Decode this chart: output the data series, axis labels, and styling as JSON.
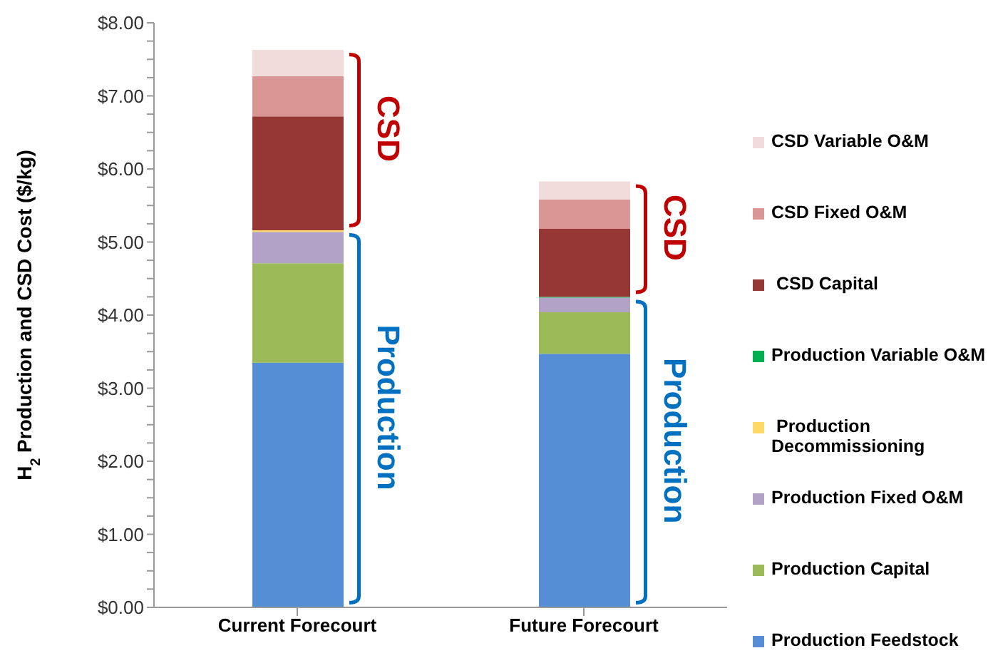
{
  "chart_data": {
    "type": "bar",
    "stacked": true,
    "ylabel": "H$_{2}$ Production and CSD Cost ($/kg)",
    "categories": [
      "Current Forecourt",
      "Future Forecourt"
    ],
    "series": [
      {
        "name": "Production Feedstock",
        "color": "#558ed5",
        "values": [
          3.35,
          3.47
        ]
      },
      {
        "name": "Production Capital",
        "color": "#9bbb59",
        "values": [
          1.36,
          0.57
        ]
      },
      {
        "name": "Production Fixed O&M",
        "color": "#b3a2c7",
        "values": [
          0.43,
          0.2
        ]
      },
      {
        "name": " Production Decommissioning",
        "color": "#ffd966",
        "values": [
          0.02,
          0
        ]
      },
      {
        "name": "Production Variable O&M",
        "color": "#00b050",
        "values": [
          0,
          0.01
        ]
      },
      {
        "name": " CSD Capital",
        "color": "#953735",
        "values": [
          1.56,
          0.93
        ]
      },
      {
        "name": "CSD Fixed O&M",
        "color": "#d99694",
        "values": [
          0.55,
          0.4
        ]
      },
      {
        "name": "CSD Variable O&M",
        "color": "#f2dcdb",
        "values": [
          0.36,
          0.25
        ]
      }
    ],
    "ylim": [
      0,
      8
    ],
    "yticks": [
      {
        "value": 0,
        "label": "$0.00"
      },
      {
        "value": 0.25,
        "label": null
      },
      {
        "value": 0.5,
        "label": null
      },
      {
        "value": 0.75,
        "label": null
      },
      {
        "value": 1,
        "label": "$1.00"
      },
      {
        "value": 1.25,
        "label": null
      },
      {
        "value": 1.5,
        "label": null
      },
      {
        "value": 1.75,
        "label": null
      },
      {
        "value": 2,
        "label": "$2.00"
      },
      {
        "value": 2.25,
        "label": null
      },
      {
        "value": 2.5,
        "label": null
      },
      {
        "value": 2.75,
        "label": null
      },
      {
        "value": 3,
        "label": "$3.00"
      },
      {
        "value": 3.25,
        "label": null
      },
      {
        "value": 3.5,
        "label": null
      },
      {
        "value": 3.75,
        "label": null
      },
      {
        "value": 4,
        "label": "$4.00"
      },
      {
        "value": 4.25,
        "label": null
      },
      {
        "value": 4.5,
        "label": null
      },
      {
        "value": 4.75,
        "label": null
      },
      {
        "value": 5,
        "label": "$5.00"
      },
      {
        "value": 5.25,
        "label": null
      },
      {
        "value": 5.5,
        "label": null
      },
      {
        "value": 5.75,
        "label": null
      },
      {
        "value": 6,
        "label": "$6.00"
      },
      {
        "value": 6.25,
        "label": null
      },
      {
        "value": 6.5,
        "label": null
      },
      {
        "value": 6.75,
        "label": null
      },
      {
        "value": 7,
        "label": "$7.00"
      },
      {
        "value": 7.25,
        "label": null
      },
      {
        "value": 7.5,
        "label": null
      },
      {
        "value": 7.75,
        "label": null
      },
      {
        "value": 8,
        "label": "$8.00"
      }
    ],
    "grid": false,
    "legend": "right",
    "annotations": [
      "CSD",
      "Production",
      "CSD",
      "Production"
    ]
  }
}
